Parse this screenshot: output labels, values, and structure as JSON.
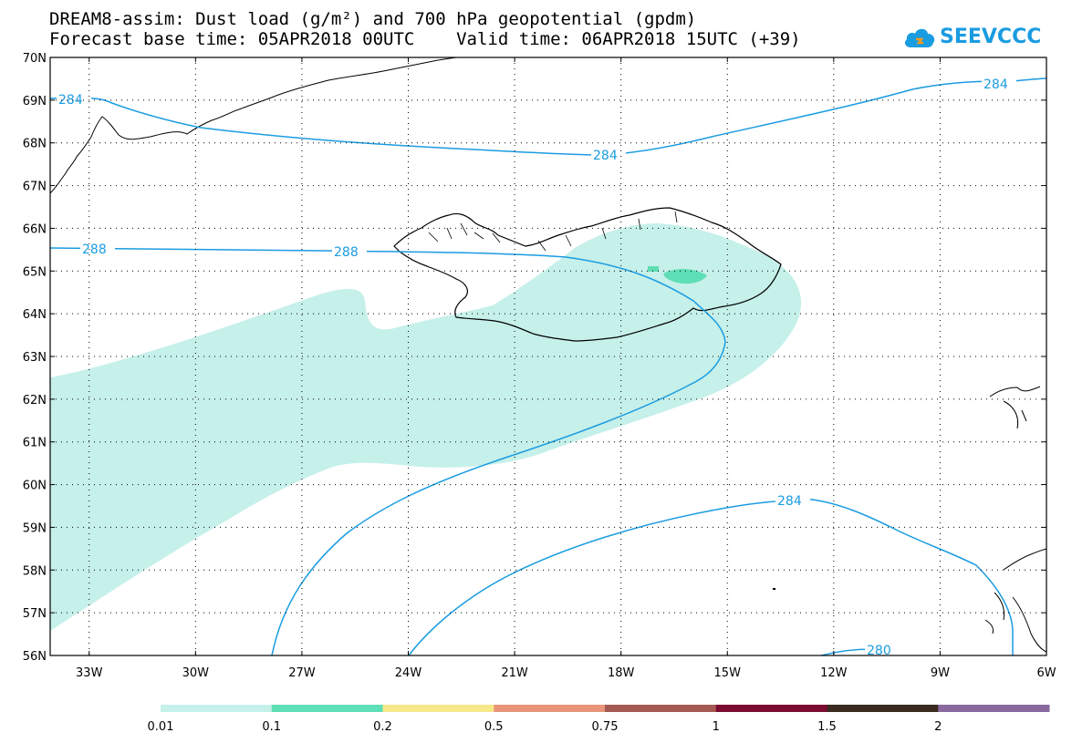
{
  "title": {
    "line1": "DREAM8-assim: Dust load (g/m²) and 700 hPa geopotential (gpdm)",
    "line2": "Forecast base time: 05APR2018 00UTC    Valid time: 06APR2018 15UTC (+39)"
  },
  "logo": {
    "text": "SEEVCCC",
    "icon": "cloud-logo-icon"
  },
  "map": {
    "lat_labels": [
      "70N",
      "69N",
      "68N",
      "67N",
      "66N",
      "65N",
      "64N",
      "63N",
      "62N",
      "61N",
      "60N",
      "59N",
      "58N",
      "57N",
      "56N"
    ],
    "lon_labels": [
      "33W",
      "30W",
      "27W",
      "24W",
      "21W",
      "18W",
      "15W",
      "12W",
      "9W",
      "6W"
    ],
    "lat_range": [
      56,
      70
    ],
    "lon_range": [
      -34.1,
      -6
    ],
    "grid": "dotted",
    "contours": [
      {
        "label": "284",
        "color": "#1a9ce0"
      },
      {
        "label": "284",
        "color": "#1a9ce0"
      },
      {
        "label": "288",
        "color": "#1a9ce0"
      },
      {
        "label": "288",
        "color": "#1a9ce0"
      },
      {
        "label": "284",
        "color": "#1a9ce0"
      },
      {
        "label": "280",
        "color": "#1a9ce0"
      }
    ]
  },
  "colorbar": {
    "colors": [
      "#c6f0ea",
      "#5fdfb5",
      "#f7e88a",
      "#e8957a",
      "#a45a52",
      "#7b0b30",
      "#3a2a20",
      "#8a6a9e"
    ],
    "labels": [
      "0.01",
      "0.1",
      "0.2",
      "0.5",
      "0.75",
      "1",
      "1.5",
      "2"
    ]
  }
}
